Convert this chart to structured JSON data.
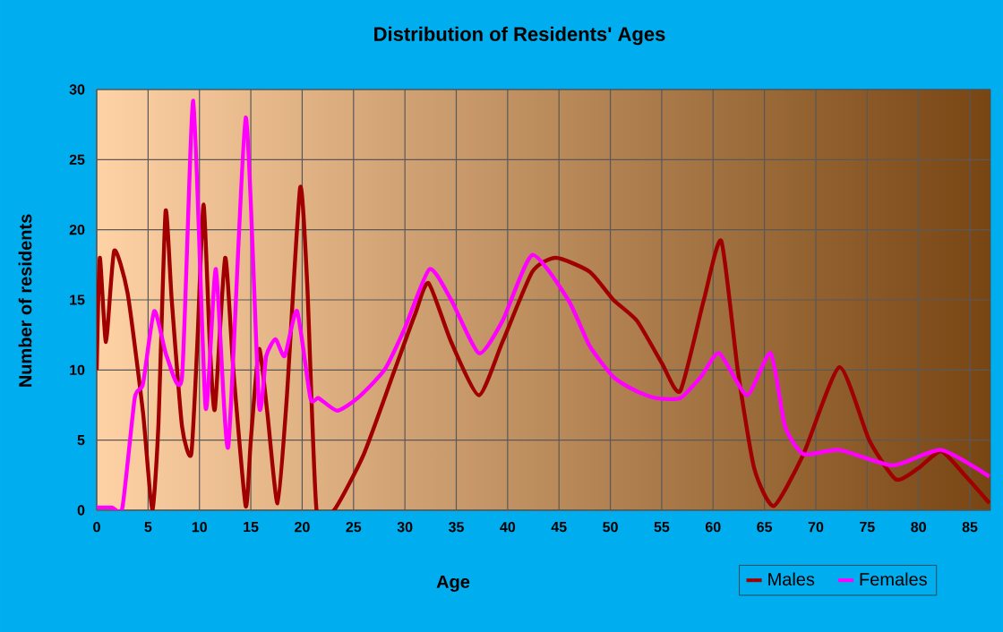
{
  "chart_data": {
    "type": "line",
    "title": "Distribution of Residents' Ages",
    "xlabel": "Age",
    "ylabel": "Number of residents",
    "xlim": [
      0,
      87
    ],
    "ylim": [
      0,
      30
    ],
    "xticks": [
      0,
      5,
      10,
      15,
      20,
      25,
      30,
      35,
      40,
      45,
      50,
      55,
      60,
      65,
      70,
      75,
      80,
      85
    ],
    "yticks": [
      0,
      5,
      10,
      15,
      20,
      25,
      30
    ],
    "grid": true,
    "legend": "bottom right",
    "marker": "none",
    "line_style": "solid",
    "series": [
      {
        "name": "Males",
        "color": "#a00000",
        "x": [
          0,
          0.3,
          0.9,
          1.7,
          3,
          4.5,
          5.4,
          6,
          6.7,
          7.3,
          8.3,
          9.2,
          9.8,
          10.4,
          11,
          11.5,
          12.5,
          13.3,
          14.5,
          15,
          15.8,
          16.6,
          17.6,
          18.5,
          19.8,
          20.5,
          21.4,
          23.1,
          26,
          29,
          31,
          32.3,
          34.5,
          37.2,
          39.5,
          42.4,
          44.7,
          48,
          50.3,
          52.6,
          55,
          56.8,
          59.1,
          60.8,
          62.4,
          64,
          65.9,
          68.8,
          72.3,
          75.2,
          77.8,
          80,
          82.2,
          84.5,
          86.9
        ],
        "values": [
          10,
          18,
          12,
          18.5,
          15.5,
          7,
          0,
          6,
          21.3,
          15,
          6,
          4,
          12,
          21.8,
          12,
          7.2,
          18,
          10,
          0.3,
          5,
          11.5,
          7,
          0.5,
          8,
          23,
          16,
          0,
          0,
          4,
          10,
          14,
          16.2,
          12,
          8.2,
          12,
          17,
          18,
          17,
          15,
          13.5,
          10.5,
          8.5,
          15,
          19.2,
          10,
          3,
          0.3,
          4,
          10.2,
          5,
          2.2,
          3,
          4.2,
          2.5,
          0.5
        ]
      },
      {
        "name": "Females",
        "color": "#ff00ff",
        "x": [
          0,
          1.5,
          2.5,
          3.7,
          4.5,
          5.6,
          6.8,
          8.3,
          9.4,
          10.6,
          11.6,
          12.8,
          14.5,
          15.8,
          16.5,
          17.4,
          18.3,
          19.5,
          20.8,
          21.6,
          23.4,
          25.4,
          28,
          30,
          32.4,
          34.5,
          37.2,
          39.5,
          42.4,
          45.9,
          48,
          50.3,
          52.5,
          54.4,
          56.8,
          58.8,
          60.6,
          63.3,
          65.6,
          67,
          68.8,
          72.3,
          77.5,
          82.2,
          86.9
        ],
        "values": [
          0.2,
          0.2,
          0.2,
          8,
          9,
          14.2,
          11,
          9.5,
          29.2,
          7.3,
          17.2,
          4.5,
          28,
          7.5,
          11,
          12.2,
          11,
          14.2,
          8,
          8,
          7.1,
          8,
          10,
          13,
          17.2,
          15,
          11.2,
          13.5,
          18.2,
          15,
          11.7,
          9.5,
          8.5,
          8,
          8,
          9.5,
          11.2,
          8.2,
          11.2,
          6,
          4,
          4.3,
          3.2,
          4.3,
          2.4
        ]
      }
    ]
  }
}
